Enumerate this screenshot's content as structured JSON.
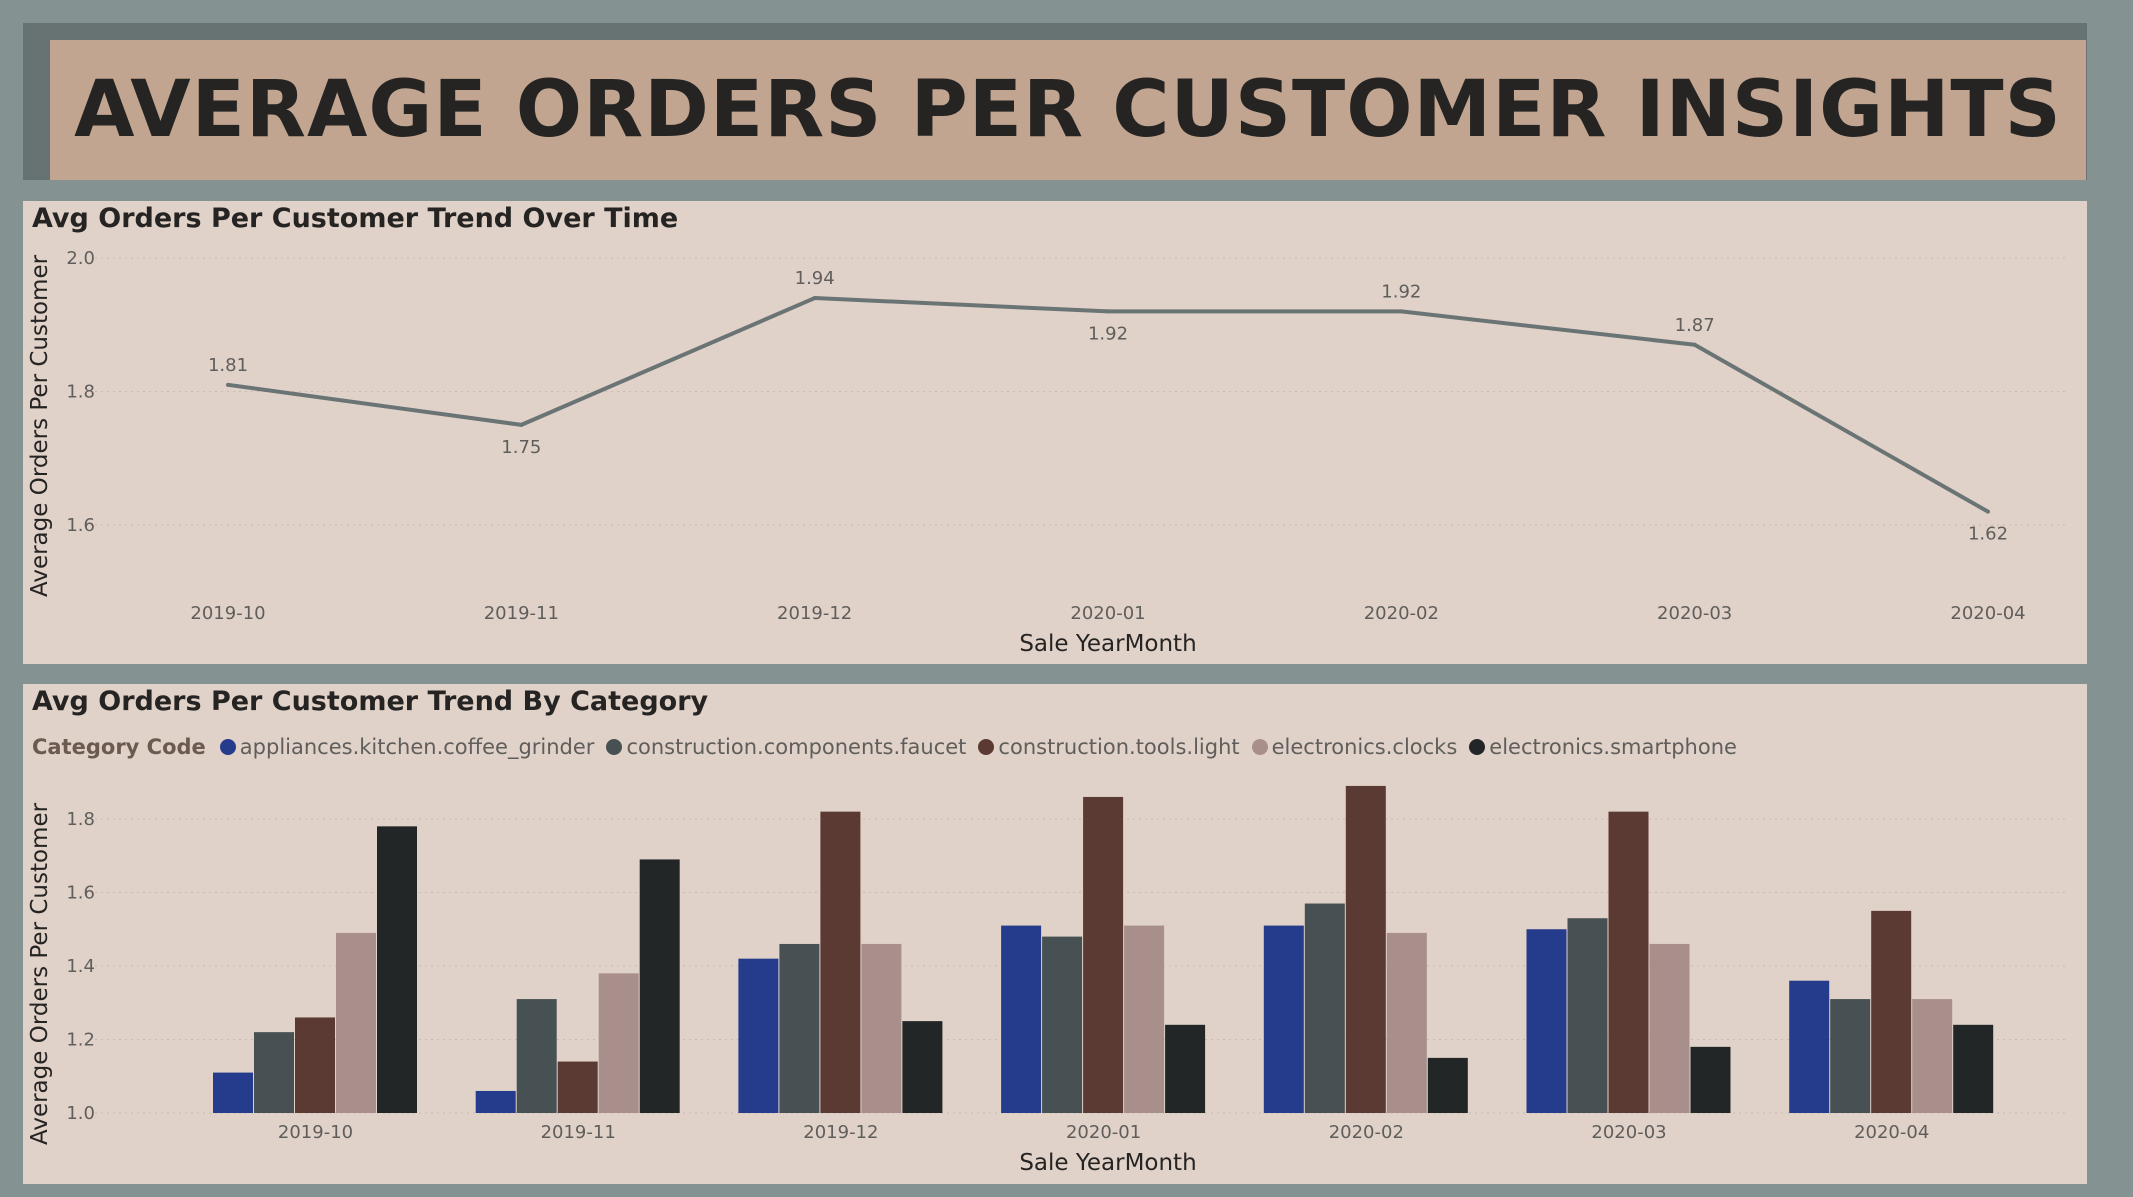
{
  "page": {
    "title": "AVERAGE ORDERS PER CUSTOMER INSIGHTS"
  },
  "colors": {
    "background": "#859292",
    "title_band": "#c1a591",
    "panel": "#e0d2c8",
    "line": "#6b7474"
  },
  "chart_data": [
    {
      "type": "line",
      "title": "Avg Orders Per Customer Trend Over Time",
      "xlabel": "Sale YearMonth",
      "ylabel": "Average Orders Per Customer",
      "categories": [
        "2019-10",
        "2019-11",
        "2019-12",
        "2020-01",
        "2020-02",
        "2020-03",
        "2020-04"
      ],
      "values": [
        1.81,
        1.75,
        1.94,
        1.92,
        1.92,
        1.87,
        1.62
      ],
      "labels": [
        "1.81",
        "1.75",
        "1.94",
        "1.92",
        "1.92",
        "1.87",
        "1.62"
      ],
      "yticks": [
        "1.6",
        "1.8",
        "2.0"
      ],
      "ylim": [
        1.6,
        2.0
      ],
      "grid": true,
      "color": "#6b7474"
    },
    {
      "type": "bar",
      "title": "Avg Orders Per Customer Trend By Category",
      "xlabel": "Sale YearMonth",
      "ylabel": "Average Orders Per Customer",
      "legend_title": "Category Code",
      "categories": [
        "2019-10",
        "2019-11",
        "2019-12",
        "2020-01",
        "2020-02",
        "2020-03",
        "2020-04"
      ],
      "yticks": [
        "1.0",
        "1.2",
        "1.4",
        "1.6",
        "1.8"
      ],
      "ylim": [
        1.0,
        1.9
      ],
      "grid": true,
      "series": [
        {
          "name": "appliances.kitchen.coffee_grinder",
          "color": "#253b8c",
          "values": [
            1.11,
            1.06,
            1.42,
            1.51,
            1.51,
            1.5,
            1.36
          ]
        },
        {
          "name": "construction.components.faucet",
          "color": "#475052",
          "values": [
            1.22,
            1.31,
            1.46,
            1.48,
            1.57,
            1.53,
            1.31
          ]
        },
        {
          "name": "construction.tools.light",
          "color": "#5b3a33",
          "values": [
            1.26,
            1.14,
            1.82,
            1.86,
            1.89,
            1.82,
            1.55
          ]
        },
        {
          "name": "electronics.clocks",
          "color": "#a88f8c",
          "values": [
            1.49,
            1.38,
            1.46,
            1.51,
            1.49,
            1.46,
            1.31
          ]
        },
        {
          "name": "electronics.smartphone",
          "color": "#222627",
          "values": [
            1.78,
            1.69,
            1.25,
            1.24,
            1.15,
            1.18,
            1.24
          ]
        }
      ]
    }
  ]
}
